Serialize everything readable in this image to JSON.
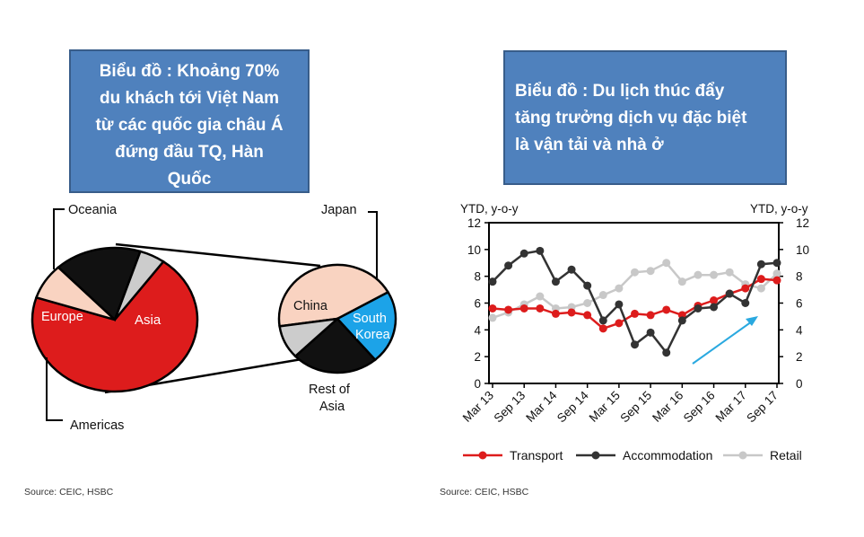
{
  "left_panel": {
    "callout_lines": [
      "Biểu đồ : Khoảng 70%",
      "du khách tới Việt Nam",
      "từ các quốc gia châu Á",
      "đứng đầu TQ, Hàn",
      "Quốc"
    ],
    "source": "Source: CEIC, HSBC"
  },
  "right_panel": {
    "callout_lines": [
      "Biểu đồ : Du lịch thúc đẩy",
      "tăng trưởng dịch vụ đặc biệt",
      "là vận tải và nhà ở"
    ],
    "source": "Source: CEIC, HSBC"
  },
  "colors": {
    "callout_fill": "#4f81bd",
    "asia": "#dd1c1c",
    "europe": "#111111",
    "americas": "#f9d3c1",
    "oceania": "#cccccc",
    "china": "#f9d3c1",
    "south_korea": "#111111",
    "rest_of_asia": "#1ca3e8",
    "japan": "#cccccc",
    "transport": "#dd1c1c",
    "accommodation": "#333333",
    "retail": "#c8c8c8",
    "arrow": "#2aa9e0"
  },
  "chart_data": [
    {
      "type": "pie",
      "slices": [
        {
          "label": "Asia",
          "value": 70,
          "color": "#dd1c1c"
        },
        {
          "label": "Americas",
          "value": 8,
          "color": "#f9d3c1"
        },
        {
          "label": "Europe",
          "value": 17,
          "color": "#111111"
        },
        {
          "label": "Oceania",
          "value": 5,
          "color": "#cccccc"
        }
      ]
    },
    {
      "type": "pie",
      "slices": [
        {
          "label": "China",
          "value": 44,
          "color": "#f9d3c1"
        },
        {
          "label": "Rest of Asia",
          "value": 22,
          "color": "#1ca3e8"
        },
        {
          "label": "South Korea",
          "value": 24,
          "color": "#111111"
        },
        {
          "label": "Japan",
          "value": 10,
          "color": "#cccccc"
        }
      ]
    },
    {
      "type": "line",
      "ylabel_left": "YTD, y-o-y",
      "ylabel_right": "YTD, y-o-y",
      "ylim": [
        0,
        12
      ],
      "yticks": [
        0,
        2,
        4,
        6,
        8,
        10,
        12
      ],
      "x_tick_labels": [
        "Mar 13",
        "Sep 13",
        "Mar 14",
        "Sep 14",
        "Mar 15",
        "Sep 15",
        "Mar 16",
        "Sep 16",
        "Mar 17",
        "Sep 17"
      ],
      "x_index_range": [
        0,
        18
      ],
      "legend_position": "bottom",
      "series": [
        {
          "name": "Transport",
          "color": "#dd1c1c",
          "values": [
            5.6,
            5.5,
            5.6,
            5.6,
            5.2,
            5.3,
            5.1,
            4.1,
            4.5,
            5.2,
            5.1,
            5.5,
            5.1,
            5.8,
            6.2,
            6.7,
            7.1,
            7.8,
            7.7
          ]
        },
        {
          "name": "Accommodation",
          "color": "#333333",
          "values": [
            7.6,
            8.8,
            9.7,
            9.9,
            7.6,
            8.5,
            7.3,
            4.7,
            5.9,
            2.9,
            3.8,
            2.3,
            4.7,
            5.6,
            5.7,
            6.7,
            6.0,
            8.9,
            9.0
          ]
        },
        {
          "name": "Retail",
          "color": "#c8c8c8",
          "values": [
            4.9,
            5.3,
            5.9,
            6.5,
            5.6,
            5.7,
            6.0,
            6.6,
            7.1,
            8.3,
            8.4,
            9.0,
            7.6,
            8.1,
            8.1,
            8.3,
            7.4,
            7.1,
            8.2
          ]
        }
      ]
    }
  ]
}
